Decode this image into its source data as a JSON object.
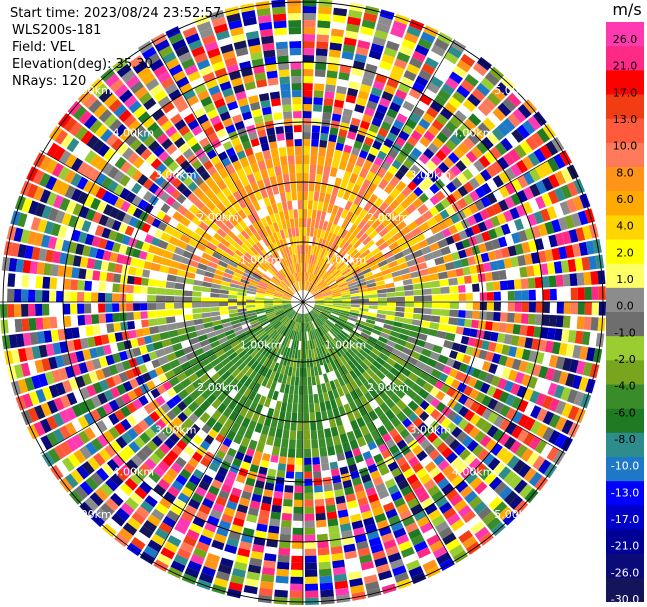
{
  "info": {
    "start_time": "Start time: 2023/08/24 23:52:57",
    "instrument": "WLS200s-181",
    "field": "Field: VEL",
    "elevation": "Elevation(deg): 35.30",
    "nrays": "NRays: 120"
  },
  "chart_data": {
    "type": "heatmap",
    "projection": "polar-ppi",
    "nrays": 120,
    "range_rings": [
      {
        "range_km": 1.0,
        "labels": [
          "1.00km",
          "1.00km",
          "1.00km",
          "1.00km"
        ]
      },
      {
        "range_km": 2.0,
        "labels": [
          "2.00km",
          "2.00km",
          "2.00km",
          "2.00km"
        ]
      },
      {
        "range_km": 3.0,
        "labels": [
          "3.00km",
          "3.00km",
          "3.00km",
          "3.00km"
        ]
      },
      {
        "range_km": 4.0,
        "labels": [
          "4.00km",
          "4.00km",
          "4.00km",
          "4.00km"
        ]
      },
      {
        "range_km": 5.0,
        "labels": [
          "5.00km",
          "5.00km",
          "5.00km",
          "5.00km"
        ]
      }
    ],
    "pattern": {
      "clean_range_km": [
        0.2,
        2.4
      ],
      "noise_from_km": 2.4,
      "north_half": "positive (4.0 to 8.0 m/s)",
      "south_half": "negative (-4.0 to -8.0 m/s)",
      "near_zero_band": "east-west axis"
    },
    "colorbar": {
      "unit": "m/s",
      "ticks": [
        "26.0",
        "21.0",
        "17.0",
        "13.0",
        "10.0",
        "8.0",
        "6.0",
        "4.0",
        "2.0",
        "1.0",
        "0.0",
        "-1.0",
        "-2.0",
        "-4.0",
        "-6.0",
        "-8.0",
        "-10.0",
        "-13.0",
        "-17.0",
        "-21.0",
        "-26.0",
        "-30.0"
      ],
      "colors": [
        "#ff3ab0",
        "#ff2a86",
        "#ff0000",
        "#f23c14",
        "#ff5a3c",
        "#ff7a5a",
        "#ff9418",
        "#ffaa00",
        "#ffd500",
        "#ffff00",
        "#ffff66",
        "#8c8c8c",
        "#6e6e6e",
        "#9acd32",
        "#78a51e",
        "#3a8c2a",
        "#1e7a23",
        "#2e8c8c",
        "#1e78c8",
        "#0000ff",
        "#0000c8",
        "#000096",
        "#0a0a78",
        "#14145a"
      ]
    }
  }
}
